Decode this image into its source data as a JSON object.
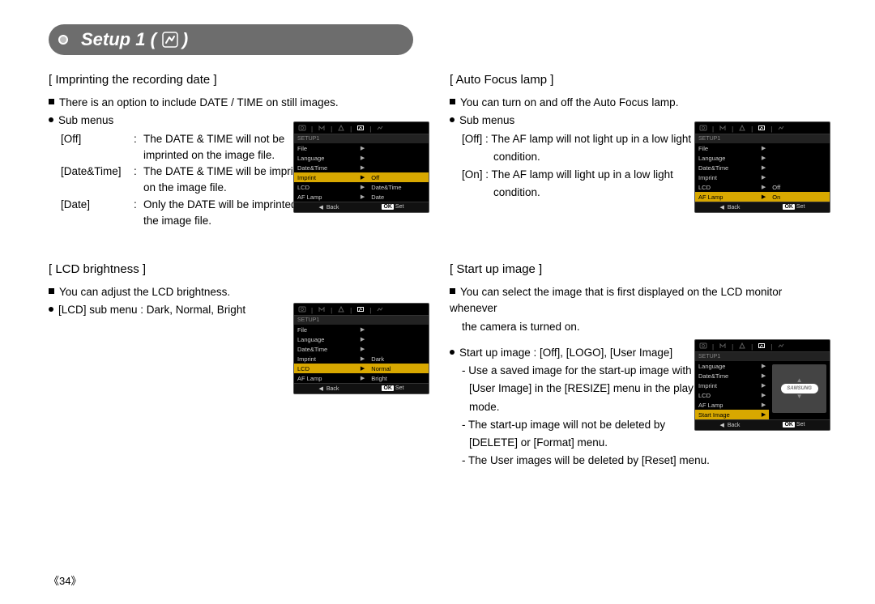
{
  "header": {
    "title_prefix": "Setup 1 (",
    "title_suffix": ")"
  },
  "page_number": "《34》",
  "sections": {
    "imprint": {
      "title": "[ Imprinting the recording date ]",
      "intro": "There is an option to include DATE / TIME on still images.",
      "sub_label": "Sub menus",
      "rows": [
        {
          "key": "[Off]",
          "val1": "The DATE & TIME will not be",
          "val2": "imprinted on the image file."
        },
        {
          "key": "[Date&Time]",
          "val1": "The DATE & TIME will be imprinted",
          "val2": "on the image file."
        },
        {
          "key": "[Date]",
          "val1": "Only the DATE will be imprinted on",
          "val2": "the image file."
        }
      ],
      "lcd": {
        "caption": "SETUP1",
        "menu": [
          "File",
          "Language",
          "Date&Time",
          "Imprint",
          "LCD",
          "AF Lamp"
        ],
        "selected_menu_index": 3,
        "options": [
          "Off",
          "Date&Time",
          "Date"
        ],
        "selected_option_index": 0,
        "option_start_row": 3,
        "back": "Back",
        "ok": "OK",
        "set": "Set"
      }
    },
    "lcd_brightness": {
      "title": "[ LCD brightness ]",
      "intro": "You can adjust the LCD brightness.",
      "line": "[LCD] sub menu : Dark, Normal, Bright",
      "lcd": {
        "caption": "SETUP1",
        "menu": [
          "File",
          "Language",
          "Date&Time",
          "Imprint",
          "LCD",
          "AF Lamp"
        ],
        "selected_menu_index": 4,
        "options": [
          "Dark",
          "Normal",
          "Bright"
        ],
        "selected_option_index": 1,
        "option_start_row": 3,
        "back": "Back",
        "ok": "OK",
        "set": "Set"
      }
    },
    "af_lamp": {
      "title": "[ Auto Focus lamp ]",
      "intro": "You can turn on and off the Auto Focus lamp.",
      "sub_label": "Sub menus",
      "off_l1": "[Off] : The AF lamp will not light up in a low light",
      "off_l2": "condition.",
      "on_l1": "[On] : The AF lamp will light up in a low light",
      "on_l2": "condition.",
      "lcd": {
        "caption": "SETUP1",
        "menu": [
          "File",
          "Language",
          "Date&Time",
          "Imprint",
          "LCD",
          "AF Lamp"
        ],
        "selected_menu_index": 5,
        "options": [
          "Off",
          "On"
        ],
        "selected_option_index": 1,
        "option_start_row": 4,
        "back": "Back",
        "ok": "OK",
        "set": "Set"
      }
    },
    "startup": {
      "title": "[ Start up image ]",
      "intro_l1": "You can select the image that is first displayed on the LCD monitor whenever",
      "intro_l2": "the camera is turned on.",
      "line": "Start up image : [Off], [LOGO], [User Image]",
      "d1": "- Use a saved image for the start-up image with the",
      "d1b": "[User Image] in the [RESIZE] menu in the play",
      "d1c": "mode.",
      "d2": "- The start-up image will not be deleted by",
      "d2b": "[DELETE] or [Format] menu.",
      "d3": "- The User images will be deleted by [Reset] menu.",
      "lcd": {
        "caption": "SETUP1",
        "menu": [
          "Language",
          "Date&Time",
          "Imprint",
          "LCD",
          "AF Lamp",
          "Start Image"
        ],
        "selected_menu_index": 5,
        "back": "Back",
        "ok": "OK",
        "set": "Set",
        "logo": "SAMSUNG"
      }
    }
  },
  "colors": {
    "header_bg": "#6d6d6d",
    "highlight": "#d8a800",
    "lcd_bg": "#000000",
    "text": "#000000"
  }
}
